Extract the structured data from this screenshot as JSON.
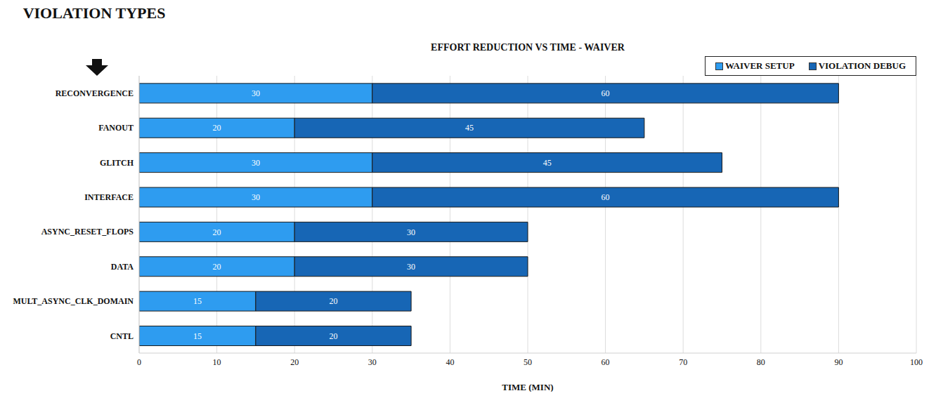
{
  "chart_data": {
    "type": "bar",
    "title": "EFFORT REDUCTION VS TIME - WAIVER",
    "xlabel": "TIME (MIN)",
    "ylabel": "VIOLATION TYPES",
    "orientation": "horizontal",
    "stacked": true,
    "data_labels": true,
    "grid": true,
    "legend": "top right",
    "categories": [
      "RECONVERGENCE",
      "FANOUT",
      "GLITCH",
      "INTERFACE",
      "ASYNC_RESET_FLOPS",
      "DATA",
      "MULT_ASYNC_CLK_DOMAIN",
      "CNTL"
    ],
    "series": [
      {
        "name": "WAIVER SETUP",
        "color": "#2e9cf0",
        "values": [
          30,
          20,
          30,
          30,
          20,
          20,
          15,
          15
        ]
      },
      {
        "name": "VIOLATION DEBUG",
        "color": "#1766b5",
        "values": [
          60,
          45,
          45,
          60,
          30,
          30,
          20,
          20
        ]
      }
    ],
    "xlim": [
      0,
      100
    ],
    "xticks": [
      0,
      10,
      20,
      30,
      40,
      50,
      60,
      70,
      80,
      90,
      100
    ]
  }
}
